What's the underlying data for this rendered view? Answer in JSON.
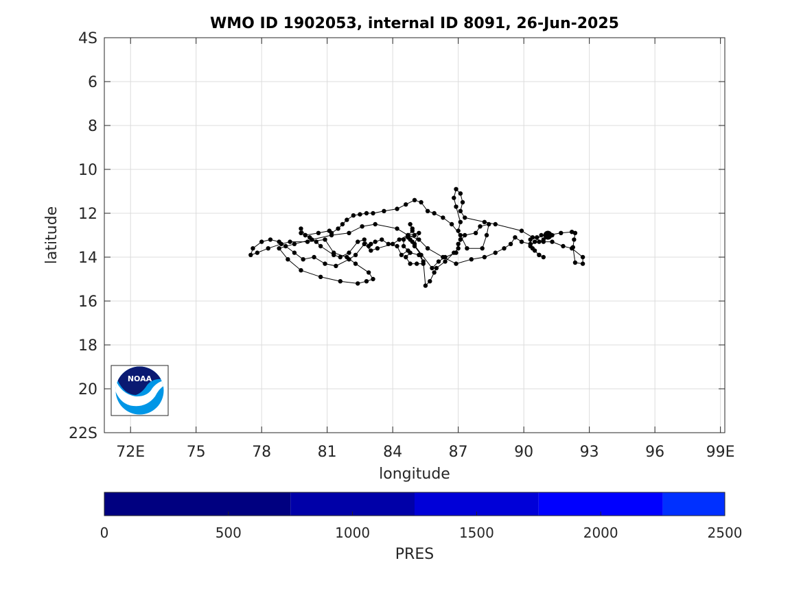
{
  "chart_data": {
    "type": "line",
    "title": "WMO ID 1902053, internal ID 8091, 26-Jun-2025",
    "xlabel": "longitude",
    "ylabel": "latitude",
    "xlim": [
      70.8,
      99.2
    ],
    "ylim": [
      4,
      22
    ],
    "y_inverted": true,
    "grid": true,
    "x_ticks": [
      72,
      75,
      78,
      81,
      84,
      87,
      90,
      93,
      96,
      99
    ],
    "x_tick_labels": [
      "72E",
      "75",
      "78",
      "81",
      "84",
      "87",
      "90",
      "93",
      "96",
      "99E"
    ],
    "y_ticks": [
      4,
      6,
      8,
      10,
      12,
      14,
      16,
      18,
      20,
      22
    ],
    "y_tick_labels": [
      "4S",
      "6",
      "8",
      "10",
      "12",
      "14",
      "16",
      "18",
      "20",
      "22S"
    ],
    "series": [
      {
        "marker": "dot",
        "color": "#000000",
        "points": [
          [
            91.1,
            13.0
          ],
          [
            91.7,
            12.9
          ],
          [
            92.2,
            12.85
          ],
          [
            92.35,
            12.9
          ],
          [
            92.3,
            13.2
          ],
          [
            92.25,
            13.55
          ],
          [
            92.35,
            14.25
          ],
          [
            92.7,
            14.3
          ],
          [
            92.7,
            14.0
          ],
          [
            92.2,
            13.6
          ],
          [
            91.8,
            13.5
          ],
          [
            91.3,
            13.3
          ],
          [
            90.9,
            13.3
          ],
          [
            90.4,
            13.1
          ],
          [
            89.9,
            12.8
          ],
          [
            88.7,
            12.5
          ],
          [
            88.2,
            12.4
          ],
          [
            87.3,
            12.2
          ],
          [
            87.1,
            11.9
          ],
          [
            87.2,
            11.5
          ],
          [
            87.1,
            11.1
          ],
          [
            86.9,
            10.9
          ],
          [
            86.8,
            11.3
          ],
          [
            86.9,
            11.7
          ],
          [
            87.1,
            12.4
          ],
          [
            87.0,
            12.8
          ],
          [
            87.1,
            13.2
          ],
          [
            87.0,
            13.6
          ],
          [
            86.8,
            13.8
          ],
          [
            86.4,
            14.2
          ],
          [
            86.0,
            14.5
          ],
          [
            85.9,
            14.7
          ],
          [
            85.7,
            15.1
          ],
          [
            85.5,
            15.3
          ],
          [
            85.4,
            14.2
          ],
          [
            85.2,
            13.9
          ],
          [
            84.8,
            13.8
          ],
          [
            84.6,
            14.0
          ],
          [
            84.8,
            14.3
          ],
          [
            85.1,
            14.3
          ],
          [
            85.4,
            14.3
          ],
          [
            85.3,
            13.9
          ],
          [
            85.0,
            13.5
          ],
          [
            84.9,
            13.3
          ],
          [
            84.7,
            13.1
          ],
          [
            85.0,
            13.0
          ],
          [
            84.9,
            12.7
          ],
          [
            84.8,
            12.5
          ],
          [
            84.9,
            12.8
          ],
          [
            84.7,
            13.0
          ],
          [
            84.5,
            13.2
          ],
          [
            84.5,
            13.5
          ],
          [
            84.7,
            13.7
          ],
          [
            84.4,
            13.9
          ],
          [
            84.2,
            13.5
          ],
          [
            83.8,
            13.4
          ],
          [
            83.5,
            13.2
          ],
          [
            83.2,
            13.3
          ],
          [
            83.0,
            13.4
          ],
          [
            82.9,
            13.5
          ],
          [
            82.7,
            13.2
          ],
          [
            82.4,
            13.3
          ],
          [
            82.0,
            13.8
          ],
          [
            81.6,
            14.0
          ],
          [
            81.3,
            13.9
          ],
          [
            80.7,
            13.5
          ],
          [
            80.5,
            13.3
          ],
          [
            80.2,
            13.1
          ],
          [
            80.0,
            13.0
          ],
          [
            79.8,
            12.9
          ],
          [
            79.8,
            12.7
          ],
          [
            80.0,
            13.0
          ],
          [
            80.6,
            12.9
          ],
          [
            81.1,
            12.8
          ],
          [
            81.2,
            12.9
          ],
          [
            81.5,
            12.7
          ],
          [
            81.7,
            12.5
          ],
          [
            81.9,
            12.3
          ],
          [
            82.2,
            12.1
          ],
          [
            82.5,
            12.05
          ],
          [
            82.8,
            12.0
          ],
          [
            83.1,
            12.0
          ],
          [
            83.6,
            11.9
          ],
          [
            84.2,
            11.8
          ],
          [
            84.6,
            11.6
          ],
          [
            85.0,
            11.4
          ],
          [
            85.3,
            11.5
          ],
          [
            85.6,
            11.9
          ],
          [
            85.9,
            12.0
          ],
          [
            86.3,
            12.2
          ],
          [
            86.7,
            12.5
          ],
          [
            87.1,
            13.0
          ],
          [
            87.4,
            13.6
          ],
          [
            88.1,
            13.6
          ],
          [
            88.3,
            13.0
          ],
          [
            88.4,
            12.5
          ],
          [
            88.0,
            12.6
          ],
          [
            87.8,
            12.9
          ],
          [
            87.3,
            13.0
          ],
          [
            87.0,
            13.4
          ],
          [
            86.9,
            13.8
          ],
          [
            86.4,
            14.0
          ],
          [
            86.1,
            14.2
          ],
          [
            85.8,
            14.5
          ],
          [
            84.8,
            13.2
          ],
          [
            85.0,
            13.4
          ],
          [
            85.2,
            12.9
          ],
          [
            84.7,
            13.0
          ],
          [
            84.3,
            13.2
          ],
          [
            84.0,
            13.4
          ],
          [
            83.3,
            13.6
          ],
          [
            83.0,
            13.7
          ],
          [
            82.7,
            13.4
          ],
          [
            82.3,
            13.9
          ],
          [
            82.0,
            14.1
          ],
          [
            81.4,
            14.4
          ],
          [
            80.9,
            14.3
          ],
          [
            80.4,
            14.0
          ],
          [
            79.9,
            14.1
          ],
          [
            79.5,
            13.8
          ],
          [
            79.1,
            13.5
          ],
          [
            78.8,
            13.3
          ],
          [
            78.4,
            13.2
          ],
          [
            78.0,
            13.3
          ],
          [
            77.6,
            13.6
          ],
          [
            77.5,
            13.9
          ],
          [
            77.8,
            13.8
          ],
          [
            78.3,
            13.6
          ],
          [
            78.9,
            13.4
          ],
          [
            79.3,
            13.3
          ],
          [
            80.1,
            13.3
          ],
          [
            80.9,
            13.2
          ],
          [
            81.3,
            13.8
          ],
          [
            81.9,
            14.0
          ],
          [
            82.3,
            14.3
          ],
          [
            82.9,
            14.7
          ],
          [
            83.1,
            15.0
          ],
          [
            82.8,
            15.1
          ],
          [
            82.4,
            15.2
          ],
          [
            81.6,
            15.1
          ],
          [
            80.7,
            14.9
          ],
          [
            79.8,
            14.6
          ],
          [
            79.2,
            14.1
          ],
          [
            78.8,
            13.6
          ],
          [
            79.5,
            13.4
          ],
          [
            80.3,
            13.2
          ],
          [
            81.2,
            13.0
          ],
          [
            82.0,
            12.9
          ],
          [
            82.6,
            12.6
          ],
          [
            83.2,
            12.5
          ],
          [
            84.2,
            12.7
          ],
          [
            84.7,
            13.0
          ],
          [
            85.2,
            13.2
          ],
          [
            85.6,
            13.6
          ],
          [
            86.3,
            14.0
          ],
          [
            86.9,
            14.3
          ],
          [
            87.6,
            14.1
          ],
          [
            88.2,
            14.0
          ],
          [
            88.7,
            13.8
          ],
          [
            89.1,
            13.6
          ],
          [
            89.4,
            13.4
          ],
          [
            89.6,
            13.1
          ],
          [
            89.9,
            13.3
          ],
          [
            90.3,
            13.4
          ],
          [
            90.7,
            13.3
          ],
          [
            90.9,
            13.2
          ],
          [
            91.1,
            13.1
          ],
          [
            91.3,
            13.0
          ],
          [
            90.8,
            13.0
          ],
          [
            90.5,
            13.3
          ],
          [
            90.3,
            13.5
          ],
          [
            90.5,
            13.7
          ],
          [
            90.7,
            13.9
          ],
          [
            90.9,
            14.0
          ],
          [
            90.7,
            13.9
          ],
          [
            90.4,
            13.6
          ],
          [
            90.3,
            13.2
          ],
          [
            90.6,
            13.1
          ],
          [
            91.0,
            13.0
          ]
        ],
        "final_position": [
          91.1,
          13.0
        ]
      }
    ],
    "colorbar": {
      "label": "PRES",
      "range": [
        0,
        2500
      ],
      "ticks": [
        0,
        500,
        1000,
        1500,
        2000,
        2500
      ],
      "tick_labels": [
        "0",
        "500",
        "1000",
        "1500",
        "2000",
        "2500"
      ],
      "segments": [
        {
          "from": 0,
          "to": 750,
          "color": "#000080"
        },
        {
          "from": 750,
          "to": 1250,
          "color": "#0000A8"
        },
        {
          "from": 1250,
          "to": 1750,
          "color": "#0000D8"
        },
        {
          "from": 1750,
          "to": 2250,
          "color": "#0000FF"
        },
        {
          "from": 2250,
          "to": 2500,
          "color": "#0030FF"
        }
      ]
    }
  },
  "logo": {
    "text": "NOAA",
    "colors": {
      "navy": "#0A1A72",
      "sky": "#0096E6",
      "white": "#ffffff"
    }
  }
}
